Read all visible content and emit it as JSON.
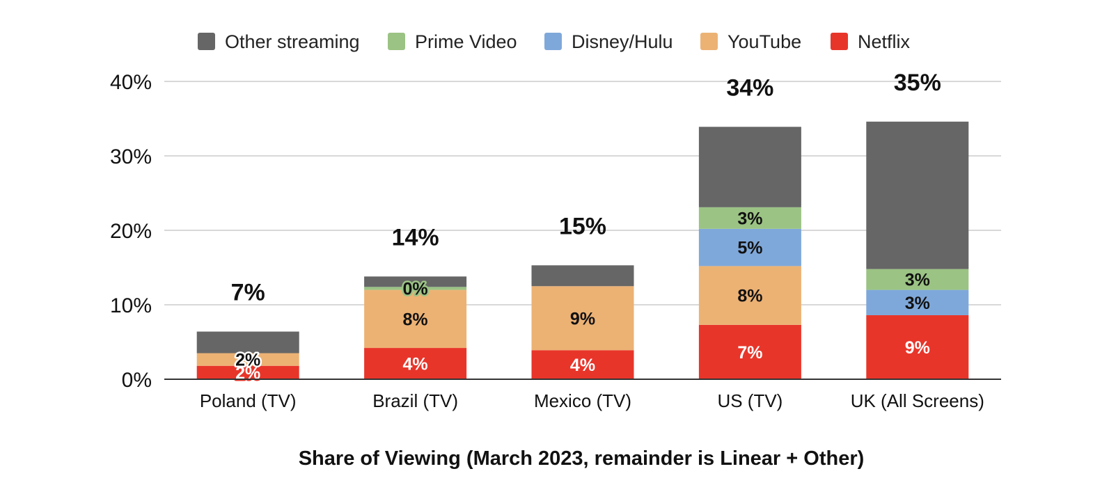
{
  "chart_data": {
    "type": "bar",
    "stacked": true,
    "xlabel": "Share of Viewing (March 2023, remainder is Linear + Other)",
    "ylabel": "",
    "ylim": [
      0,
      40
    ],
    "y_ticks": [
      "0%",
      "10%",
      "20%",
      "30%",
      "40%"
    ],
    "grid": true,
    "legend_position": "top",
    "categories": [
      "Poland (TV)",
      "Brazil (TV)",
      "Mexico (TV)",
      "US (TV)",
      "UK (All Screens)"
    ],
    "series": [
      {
        "name": "Netflix",
        "color": "#e8352a",
        "values": [
          1.8,
          4.2,
          3.9,
          7.3,
          8.6
        ],
        "labels": [
          "2%",
          "4%",
          "4%",
          "7%",
          "9%"
        ]
      },
      {
        "name": "YouTube",
        "color": "#ecb274",
        "values": [
          1.7,
          7.8,
          8.6,
          7.9,
          0
        ],
        "labels": [
          "2%",
          "8%",
          "9%",
          "8%",
          ""
        ]
      },
      {
        "name": "Disney/Hulu",
        "color": "#7fa8da",
        "values": [
          0,
          0,
          0,
          5.0,
          3.4
        ],
        "labels": [
          "",
          "",
          "",
          "5%",
          "3%"
        ]
      },
      {
        "name": "Prime Video",
        "color": "#9bc384",
        "values": [
          0,
          0.4,
          0,
          2.9,
          2.8
        ],
        "labels": [
          "",
          "0%",
          "",
          "3%",
          "3%"
        ]
      },
      {
        "name": "Other streaming",
        "color": "#666666",
        "values": [
          2.9,
          1.4,
          2.8,
          10.8,
          19.8
        ],
        "labels": [
          "",
          "",
          "",
          "",
          ""
        ]
      }
    ],
    "totals": [
      "7%",
      "14%",
      "15%",
      "34%",
      "35%"
    ],
    "legend_order": [
      "Other streaming",
      "Prime Video",
      "Disney/Hulu",
      "YouTube",
      "Netflix"
    ]
  }
}
